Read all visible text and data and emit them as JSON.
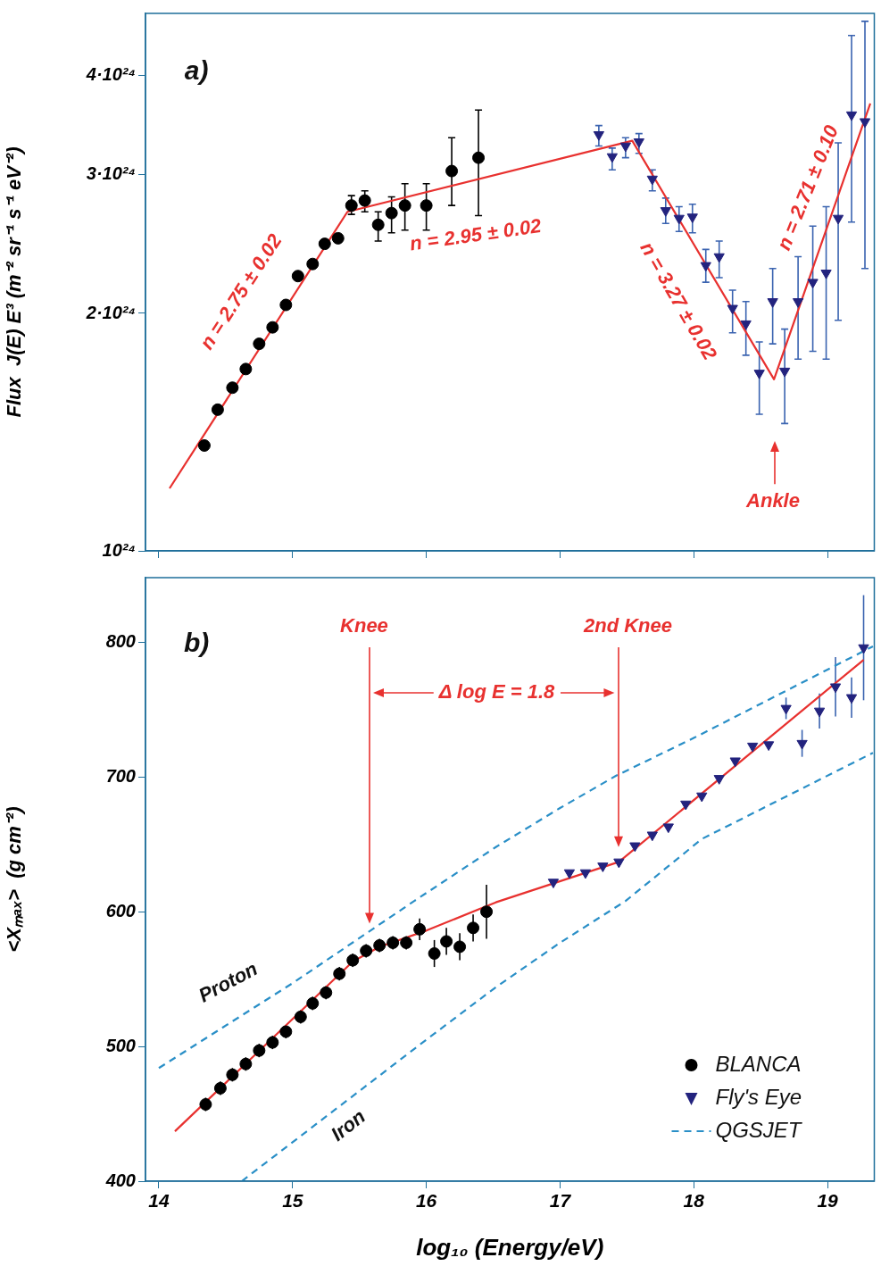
{
  "chart_data": [
    {
      "type": "scatter",
      "ylabel": "Flux  J(E) E³ (m⁻² sr⁻¹ s⁻¹ eV⁻²)",
      "log": "y",
      "xlim": [
        13.9,
        19.35
      ],
      "xticks": [
        14,
        15,
        16,
        17,
        18,
        19
      ],
      "ylim": [
        1e+24,
        4.8e+24
      ],
      "yticks": [
        {
          "value": 1e+24,
          "label": "10²⁴"
        },
        {
          "value": 2e+24,
          "label": "2·10²⁴"
        },
        {
          "value": 3e+24,
          "label": "3·10²⁴"
        },
        {
          "value": 4e+24,
          "label": "4·10²⁴"
        }
      ],
      "tick_labels": "y",
      "grid": false,
      "series": [
        {
          "color": "#000000",
          "marker": "circle",
          "x": [
            14.34,
            14.44,
            14.55,
            14.65,
            14.75,
            14.85,
            14.95,
            15.04,
            15.15,
            15.24,
            15.34,
            15.44,
            15.54,
            15.64,
            15.74,
            15.84,
            16.0,
            16.19,
            16.39
          ],
          "values": [
            1.36e+24,
            1.51e+24,
            1.61e+24,
            1.7e+24,
            1.83e+24,
            1.92e+24,
            2.05e+24,
            2.23e+24,
            2.31e+24,
            2.45e+24,
            2.49e+24,
            2.74e+24,
            2.78e+24,
            2.59e+24,
            2.68e+24,
            2.74e+24,
            2.74e+24,
            3.03e+24,
            3.15e+24
          ],
          "errors": [
            null,
            null,
            null,
            null,
            null,
            null,
            null,
            null,
            null,
            null,
            null,
            [
              2.67e+24,
              2.82e+24
            ],
            [
              2.69e+24,
              2.86e+24
            ],
            [
              2.47e+24,
              2.69e+24
            ],
            [
              2.53e+24,
              2.81e+24
            ],
            [
              2.55e+24,
              2.92e+24
            ],
            [
              2.55e+24,
              2.92e+24
            ],
            [
              2.74e+24,
              3.34e+24
            ],
            [
              2.66e+24,
              3.62e+24
            ]
          ]
        },
        {
          "color": "#23237e",
          "marker": "triangle",
          "x": [
            17.29,
            17.39,
            17.49,
            17.59,
            17.69,
            17.79,
            17.89,
            17.99,
            18.09,
            18.19,
            18.29,
            18.39,
            18.49,
            18.59,
            18.68,
            18.78,
            18.89,
            18.99,
            19.08,
            19.18,
            19.28
          ],
          "values": [
            3.37e+24,
            3.16e+24,
            3.26e+24,
            3.3e+24,
            2.96e+24,
            2.7e+24,
            2.64e+24,
            2.65e+24,
            2.3e+24,
            2.36e+24,
            2.03e+24,
            1.94e+24,
            1.68e+24,
            2.07e+24,
            1.69e+24,
            2.07e+24,
            2.19e+24,
            2.25e+24,
            2.64e+24,
            3.57e+24,
            3.5e+24
          ],
          "errors": [
            [
              3.26e+24,
              3.46e+24
            ],
            [
              3.04e+24,
              3.24e+24
            ],
            [
              3.15e+24,
              3.34e+24
            ],
            [
              3.19e+24,
              3.38e+24
            ],
            [
              2.86e+24,
              3.04e+24
            ],
            [
              2.6e+24,
              2.8e+24
            ],
            [
              2.54e+24,
              2.73e+24
            ],
            [
              2.53e+24,
              2.75e+24
            ],
            [
              2.19e+24,
              2.41e+24
            ],
            [
              2.22e+24,
              2.47e+24
            ],
            [
              1.89e+24,
              2.14e+24
            ],
            [
              1.77e+24,
              2.07e+24
            ],
            [
              1.49e+24,
              1.84e+24
            ],
            [
              1.83e+24,
              2.28e+24
            ],
            [
              1.45e+24,
              1.91e+24
            ],
            [
              1.75e+24,
              2.36e+24
            ],
            [
              1.79e+24,
              2.58e+24
            ],
            [
              1.75e+24,
              2.73e+24
            ],
            [
              1.96e+24,
              3.29e+24
            ],
            [
              2.61e+24,
              4.5e+24
            ],
            [
              2.28e+24,
              4.69e+24
            ]
          ]
        },
        {
          "type": "line",
          "color": "#e8312f",
          "marker": "none",
          "line_style": "solid",
          "x": [
            14.08,
            15.41,
            17.54,
            18.6,
            19.32
          ],
          "values": [
            1.2e+24,
            2.69e+24,
            3.31e+24,
            1.65e+24,
            3.69e+24
          ]
        }
      ],
      "annotations": [
        "a)",
        "n = 2.75 ± 0.02",
        "n = 2.95 ± 0.02",
        "n = 3.27 ± 0.02",
        "n = 2.71 ± 0.10",
        "Ankle"
      ]
    },
    {
      "type": "scatter",
      "xlabel": "log₁₀ (Energy/eV)",
      "ylabel": "<Xₘₐₓ>  (g cm⁻²)",
      "xlim": [
        13.9,
        19.35
      ],
      "xticks": [
        14,
        15,
        16,
        17,
        18,
        19
      ],
      "ylim": [
        400,
        848
      ],
      "yticks": [
        400,
        500,
        600,
        700,
        800
      ],
      "grid": false,
      "legend": "bottom right",
      "series": [
        {
          "name": "BLANCA",
          "color": "#000000",
          "marker": "circle",
          "x": [
            14.35,
            14.46,
            14.55,
            14.65,
            14.75,
            14.85,
            14.95,
            15.06,
            15.15,
            15.25,
            15.35,
            15.45,
            15.55,
            15.65,
            15.75,
            15.85,
            15.95,
            16.06,
            16.15,
            16.25,
            16.35,
            16.45
          ],
          "values": [
            457,
            469,
            479,
            487,
            497,
            503,
            511,
            522,
            532,
            540,
            554,
            564,
            571,
            575,
            577,
            577,
            587,
            569,
            578,
            574,
            588,
            600
          ],
          "errors": [
            5,
            5,
            5,
            5,
            5,
            5,
            5,
            5,
            5,
            5,
            5,
            5,
            5,
            5,
            5,
            5,
            8,
            10,
            10,
            10,
            10,
            20
          ]
        },
        {
          "name": "Fly's Eye",
          "color": "#23237e",
          "marker": "triangle",
          "x": [
            16.95,
            17.07,
            17.19,
            17.32,
            17.44,
            17.56,
            17.69,
            17.81,
            17.94,
            18.06,
            18.19,
            18.31,
            18.44,
            18.56,
            18.69,
            18.81,
            18.94,
            19.06,
            19.18,
            19.27
          ],
          "values": [
            622,
            629,
            629,
            634,
            637,
            649,
            657,
            663,
            680,
            686,
            699,
            712,
            723,
            724,
            751,
            725,
            749,
            767,
            759,
            796
          ],
          "errors": [
            null,
            null,
            null,
            null,
            null,
            null,
            null,
            null,
            null,
            null,
            null,
            null,
            null,
            null,
            8,
            10,
            13,
            22,
            15,
            39
          ]
        },
        {
          "type": "line",
          "color": "#e8312f",
          "marker": "none",
          "line_style": "solid",
          "x": [
            14.12,
            15.45,
            15.65,
            16.0,
            16.52,
            17.44,
            19.27
          ],
          "values": [
            437,
            563,
            574,
            586,
            607,
            637,
            787
          ]
        },
        {
          "name": "QGSJET",
          "type": "line",
          "color": "#2a8fc7",
          "marker": "none",
          "line_style": "dashed",
          "x": [
            14.0,
            15.0,
            15.91,
            16.52,
            17.0,
            17.42,
            18.0,
            19.34
          ],
          "values": [
            484,
            547,
            608,
            648,
            677,
            701,
            729,
            797
          ]
        },
        {
          "type": "line",
          "color": "#2a8fc7",
          "marker": "none",
          "line_style": "dashed",
          "x": [
            14.62,
            15.5,
            16.0,
            16.52,
            17.0,
            17.49,
            18.06,
            19.34
          ],
          "values": [
            400,
            467,
            505,
            544,
            577,
            608,
            654,
            718
          ]
        }
      ],
      "annotations": [
        "b)",
        "Knee",
        "2nd Knee",
        "Δ log E = 1.8",
        "Proton",
        "Iron"
      ]
    }
  ]
}
